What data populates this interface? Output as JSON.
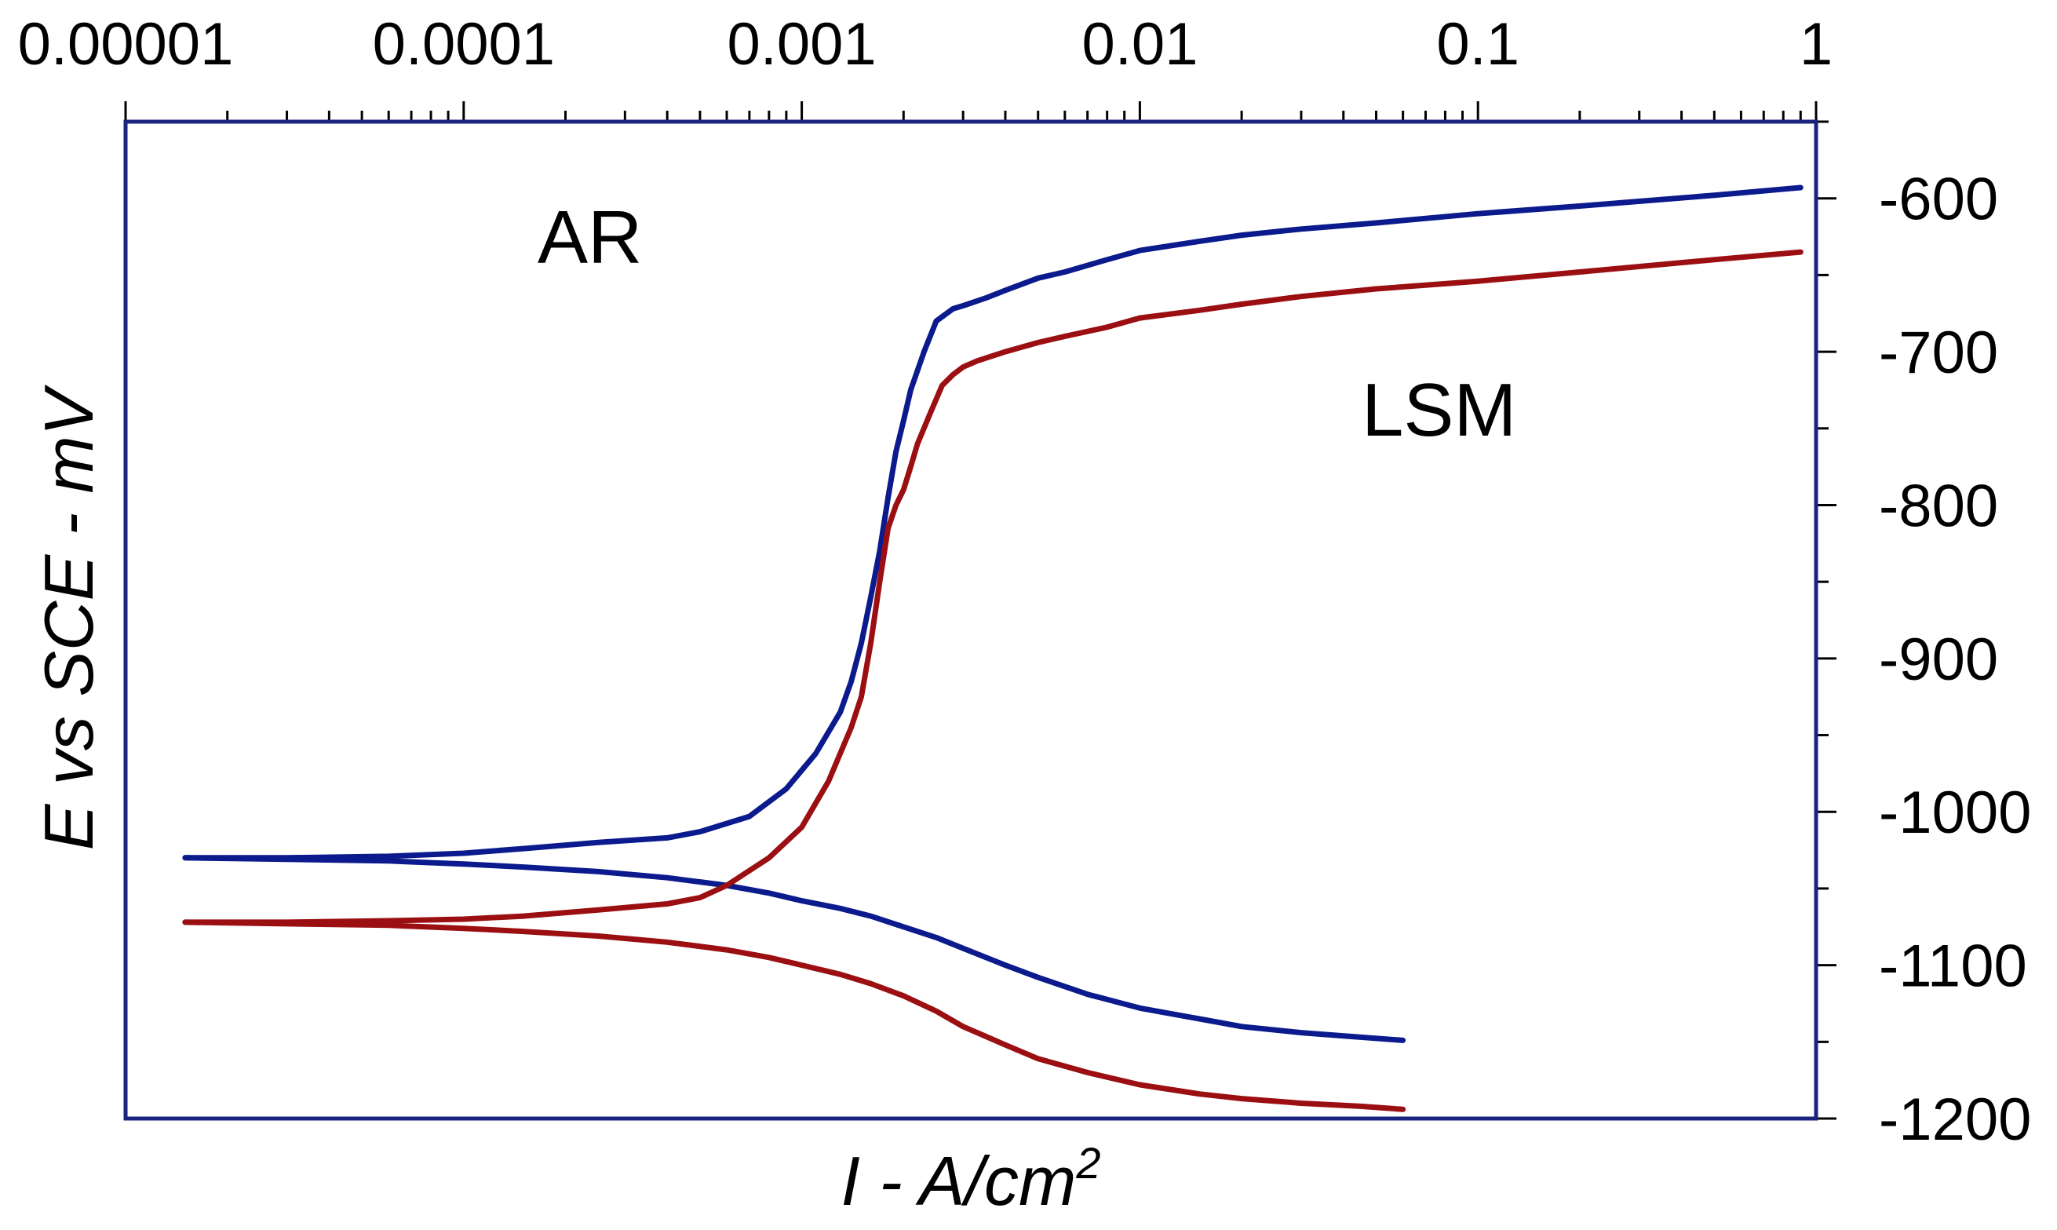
{
  "chart_data": {
    "type": "line",
    "title": "",
    "xlabel": "I - A/cm",
    "xlabel_superscript": "2",
    "ylabel": "E vs SCE - mV",
    "x_scale": "log",
    "xlim": [
      1e-05,
      1
    ],
    "ylim": [
      -1200,
      -550
    ],
    "x_ticks": [
      1e-05,
      0.0001,
      0.001,
      0.01,
      0.1,
      1
    ],
    "x_tick_labels": [
      "0.00001",
      "0.0001",
      "0.001",
      "0.01",
      "0.1",
      "1"
    ],
    "y_ticks": [
      -600,
      -700,
      -800,
      -900,
      -1000,
      -1100,
      -1200
    ],
    "y_tick_labels": [
      "-600",
      "-700",
      "-800",
      "-900",
      "-1000",
      "-1100",
      "-1200"
    ],
    "grid": false,
    "annotations": [
      "AR",
      "LSM"
    ],
    "colors": {
      "frame": "#1a237e",
      "ar": "#0b1a8c",
      "lsm": "#9b0f12"
    },
    "series": [
      {
        "name": "AR",
        "branch": "anodic",
        "x": [
          1.5e-05,
          3e-05,
          6e-05,
          0.0001,
          0.00015,
          0.00025,
          0.0004,
          0.0005,
          0.0007,
          0.0009,
          0.0011,
          0.0013,
          0.0014,
          0.0015,
          0.0016,
          0.0017,
          0.0018,
          0.0019,
          0.002,
          0.0021,
          0.0023,
          0.0025,
          0.0028,
          0.003,
          0.0035,
          0.004,
          0.005,
          0.006,
          0.008,
          0.01,
          0.015,
          0.02,
          0.03,
          0.05,
          0.1,
          0.2,
          0.5,
          0.9
        ],
        "y": [
          -1030,
          -1030,
          -1029,
          -1027,
          -1024,
          -1020,
          -1017,
          -1013,
          -1003,
          -985,
          -962,
          -935,
          -915,
          -890,
          -860,
          -830,
          -795,
          -765,
          -745,
          -725,
          -700,
          -680,
          -672,
          -670,
          -665,
          -660,
          -652,
          -648,
          -640,
          -634,
          -628,
          -624,
          -620,
          -616,
          -610,
          -605,
          -598,
          -593
        ]
      },
      {
        "name": "AR",
        "branch": "cathodic",
        "x": [
          1.5e-05,
          3e-05,
          6e-05,
          0.0001,
          0.00015,
          0.00025,
          0.0004,
          0.0006,
          0.0008,
          0.001,
          0.0013,
          0.0016,
          0.002,
          0.0025,
          0.003,
          0.004,
          0.005,
          0.007,
          0.01,
          0.015,
          0.02,
          0.03,
          0.045,
          0.06
        ],
        "y": [
          -1030,
          -1031,
          -1032,
          -1034,
          -1036,
          -1039,
          -1043,
          -1048,
          -1053,
          -1058,
          -1063,
          -1068,
          -1075,
          -1082,
          -1089,
          -1100,
          -1108,
          -1119,
          -1128,
          -1135,
          -1140,
          -1144,
          -1147,
          -1149
        ]
      },
      {
        "name": "LSM",
        "branch": "anodic",
        "x": [
          1.5e-05,
          3e-05,
          6e-05,
          0.0001,
          0.00015,
          0.00025,
          0.0004,
          0.0005,
          0.0006,
          0.0008,
          0.001,
          0.0012,
          0.0014,
          0.0015,
          0.0016,
          0.0017,
          0.0018,
          0.0019,
          0.002,
          0.0021,
          0.0022,
          0.0024,
          0.0026,
          0.0028,
          0.003,
          0.0033,
          0.004,
          0.005,
          0.006,
          0.008,
          0.01,
          0.015,
          0.02,
          0.03,
          0.05,
          0.1,
          0.2,
          0.5,
          0.9
        ],
        "y": [
          -1072,
          -1072,
          -1071,
          -1070,
          -1068,
          -1064,
          -1060,
          -1056,
          -1048,
          -1030,
          -1010,
          -980,
          -945,
          -925,
          -890,
          -850,
          -815,
          -800,
          -790,
          -775,
          -760,
          -740,
          -722,
          -715,
          -710,
          -706,
          -700,
          -694,
          -690,
          -684,
          -678,
          -673,
          -669,
          -664,
          -659,
          -654,
          -648,
          -640,
          -635
        ]
      },
      {
        "name": "LSM",
        "branch": "cathodic",
        "x": [
          1.5e-05,
          3e-05,
          6e-05,
          0.0001,
          0.00015,
          0.00025,
          0.0004,
          0.0006,
          0.0008,
          0.001,
          0.0013,
          0.0016,
          0.002,
          0.0025,
          0.003,
          0.004,
          0.005,
          0.007,
          0.01,
          0.015,
          0.02,
          0.03,
          0.045,
          0.06
        ],
        "y": [
          -1072,
          -1073,
          -1074,
          -1076,
          -1078,
          -1081,
          -1085,
          -1090,
          -1095,
          -1100,
          -1106,
          -1112,
          -1120,
          -1130,
          -1140,
          -1152,
          -1161,
          -1170,
          -1178,
          -1184,
          -1187,
          -1190,
          -1192,
          -1194
        ]
      }
    ]
  }
}
